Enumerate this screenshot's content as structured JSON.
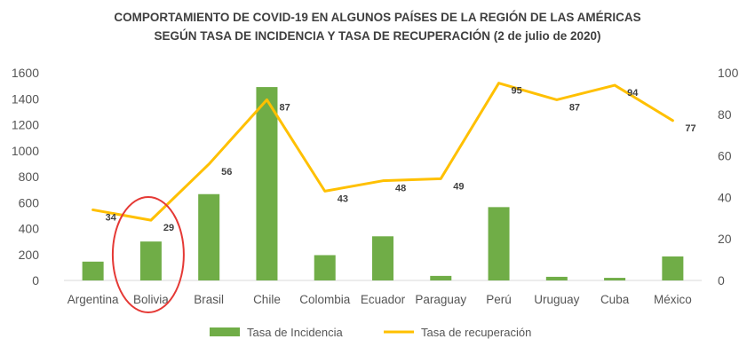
{
  "chart_data": {
    "type": "bar+line",
    "title": "COMPORTAMIENTO DE COVID-19 EN ALGUNOS PAÍSES DE LA REGIÓN DE LAS AMÉRICAS",
    "subtitle": "SEGÚN TASA DE INCIDENCIA Y TASA DE RECUPERACIÓN (2 de julio de 2020)",
    "categories": [
      "Argentina",
      "Bolivia",
      "Brasil",
      "Chile",
      "Colombia",
      "Ecuador",
      "Paraguay",
      "Perú",
      "Uruguay",
      "Cuba",
      "México"
    ],
    "series": [
      {
        "name": "Tasa de Incidencia",
        "kind": "bar",
        "axis": "left",
        "color": "#70AD47",
        "values": [
          145,
          300,
          665,
          1490,
          195,
          340,
          35,
          565,
          28,
          20,
          185
        ]
      },
      {
        "name": "Tasa de recuperación",
        "kind": "line",
        "axis": "right",
        "color": "#FFC000",
        "values": [
          34,
          29,
          56,
          87,
          43,
          48,
          49,
          95,
          87,
          94,
          77
        ],
        "data_labels": [
          "34",
          "29",
          "56",
          "87",
          "43",
          "48",
          "49",
          "95",
          "87",
          "94",
          "77"
        ]
      }
    ],
    "y_left": {
      "min": 0,
      "max": 1600,
      "ticks": [
        "0",
        "200",
        "400",
        "600",
        "800",
        "1000",
        "1200",
        "1400",
        "1600"
      ]
    },
    "y_right": {
      "min": 0,
      "max": 100,
      "ticks": [
        "0",
        "20",
        "40",
        "60",
        "80",
        "100"
      ]
    },
    "grid": false,
    "legend_position": "bottom",
    "highlight": {
      "category": "Bolivia",
      "shape": "ellipse",
      "color": "#E53935"
    }
  }
}
